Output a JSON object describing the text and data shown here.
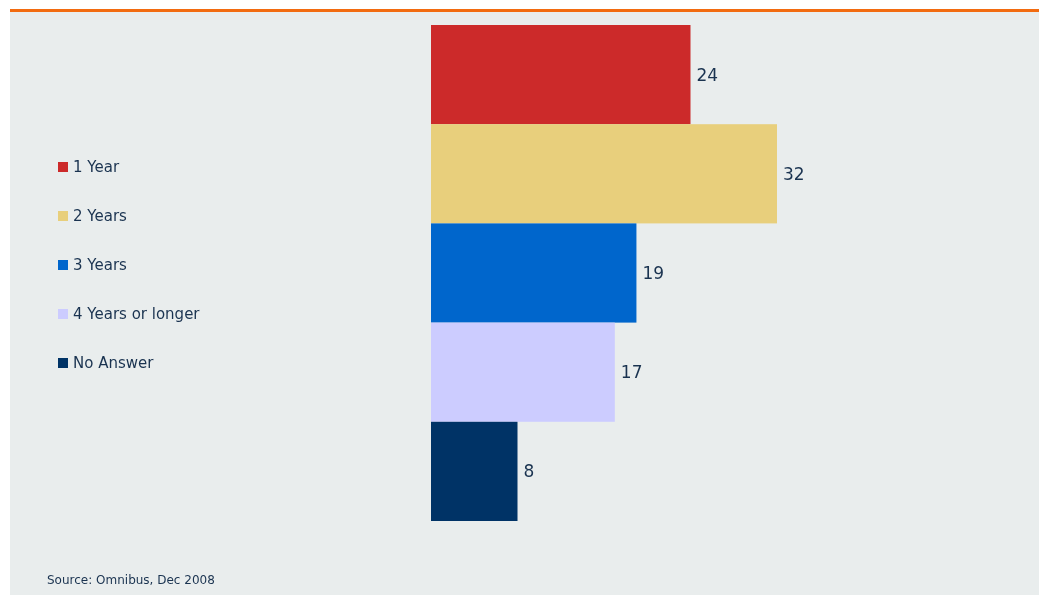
{
  "chart_data": {
    "type": "bar",
    "orientation": "horizontal",
    "categories": [
      null
    ],
    "series": [
      {
        "name": "1 Year",
        "color": "#cc2a2a",
        "values": [
          24
        ]
      },
      {
        "name": "2 Years",
        "color": "#e8cf7c",
        "values": [
          32
        ]
      },
      {
        "name": "3 Years",
        "color": "#0066cc",
        "values": [
          19
        ]
      },
      {
        "name": "4 Years or longer",
        "color": "#ccccff",
        "values": [
          17
        ]
      },
      {
        "name": "No Answer",
        "color": "#003366",
        "values": [
          8
        ]
      }
    ],
    "data_labels": true,
    "legend": "left",
    "tick_labels": false,
    "annotations": [
      "Source: Omnibus, Dec 2008"
    ]
  }
}
